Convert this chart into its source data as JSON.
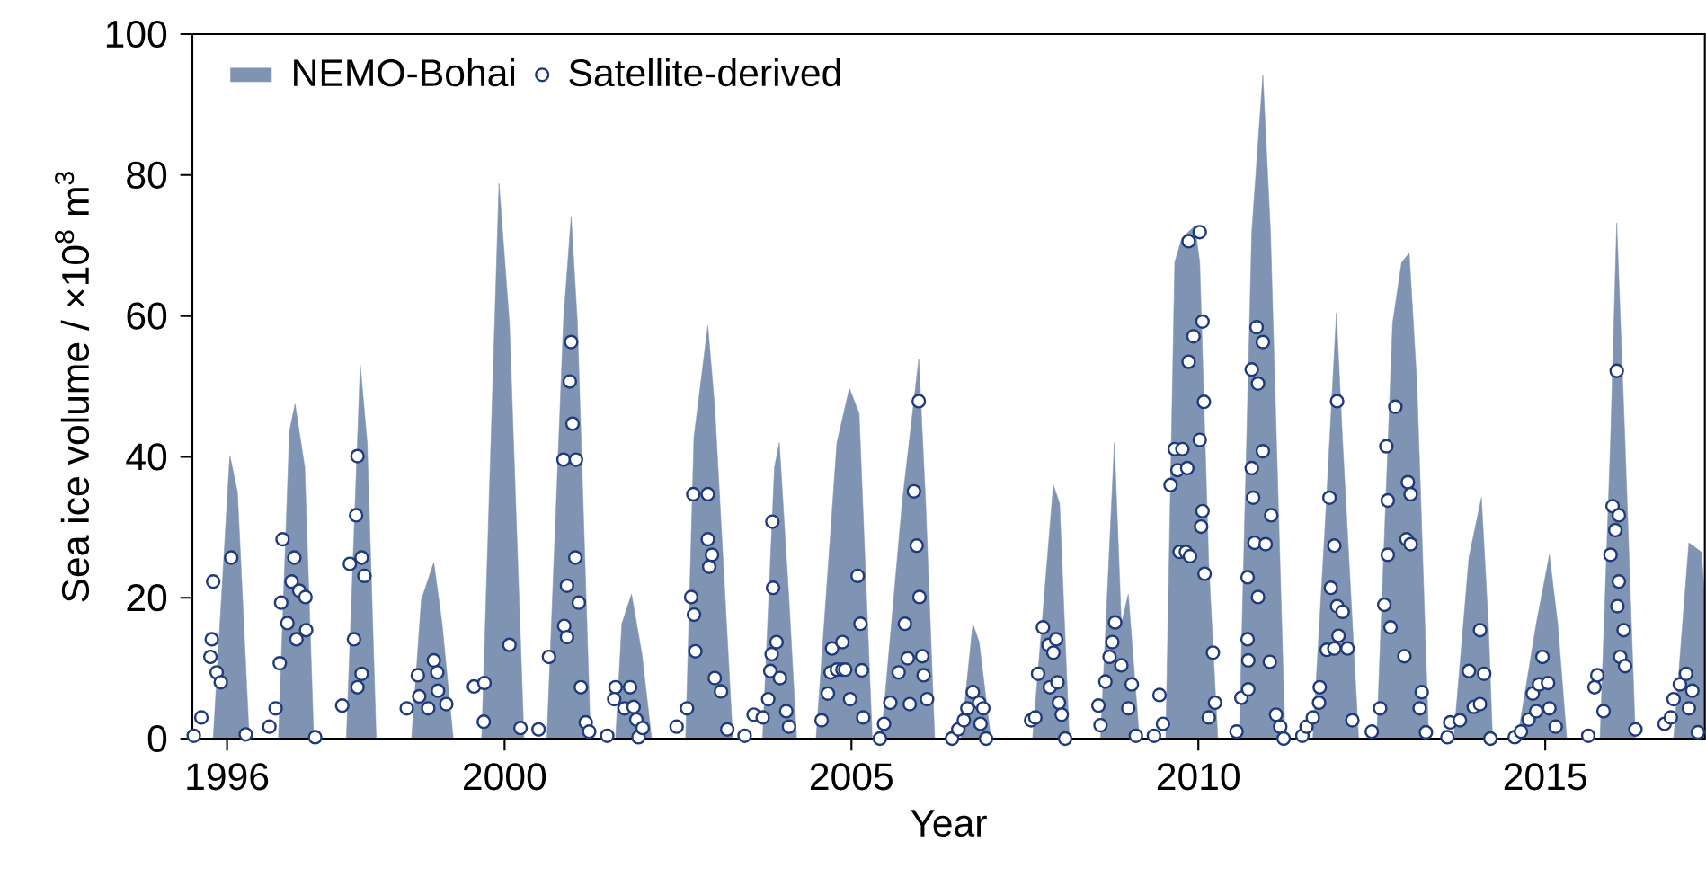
{
  "chart_data": {
    "type": "area",
    "xlabel": "Year",
    "ylabel": "Sea ice volume / ×10$^{8}$ m$^{3}$",
    "xlim": [
      1995.5,
      2017.3
    ],
    "ylim": [
      0,
      100
    ],
    "xticks": [
      1996,
      2000,
      2005,
      2010,
      2015
    ],
    "yticks": [
      0,
      20,
      40,
      60,
      80,
      100
    ],
    "grid": false,
    "legend": "top left",
    "series": [
      {
        "name": "NEMO-Bohai",
        "color": "#7f93b2",
        "x": [
          1995.8,
          1996.04,
          1996.15,
          1996.32,
          1996.74,
          1996.9,
          1996.98,
          1997.12,
          1997.25,
          1997.72,
          1997.92,
          1998.02,
          1998.15,
          1998.66,
          1998.8,
          1998.98,
          1999.1,
          1999.26,
          1999.67,
          1999.92,
          2000.07,
          2000.28,
          2000.61,
          2000.85,
          2000.96,
          2001.05,
          2001.24,
          2001.6,
          2001.69,
          2001.83,
          2001.98,
          2002.12,
          2002.61,
          2002.73,
          2002.93,
          2003.03,
          2003.29,
          2003.72,
          2003.89,
          2003.96,
          2004.1,
          2004.21,
          2004.49,
          2004.79,
          2004.97,
          2005.11,
          2005.3,
          2005.43,
          2005.73,
          2005.97,
          2006.07,
          2006.2,
          2006.58,
          2006.75,
          2006.84,
          2007.01,
          2007.61,
          2007.91,
          2008.0,
          2008.14,
          2008.59,
          2008.72,
          2008.79,
          2008.89,
          2008.99,
          2009.15,
          2009.53,
          2009.66,
          2009.76,
          2009.95,
          2010.02,
          2010.15,
          2010.28,
          2010.59,
          2010.77,
          2010.93,
          2011.04,
          2011.25,
          2011.65,
          2011.82,
          2011.99,
          2012.08,
          2012.31,
          2012.57,
          2012.8,
          2012.93,
          2013.04,
          2013.15,
          2013.32,
          2013.68,
          2013.9,
          2014.08,
          2014.18,
          2014.24,
          2014.6,
          2014.87,
          2015.06,
          2015.18,
          2015.31,
          2015.79,
          2015.94,
          2016.03,
          2016.15,
          2016.3,
          2016.85,
          2017.07,
          2017.25,
          2017.3
        ],
        "values": [
          0,
          40.2,
          35,
          0,
          0,
          43.7,
          47.5,
          38.5,
          0,
          0,
          53.1,
          42,
          0,
          0,
          19.7,
          25,
          16.3,
          0,
          0,
          78.8,
          59,
          0,
          0,
          59.5,
          74.1,
          59,
          0,
          0,
          16.3,
          20.5,
          12,
          0,
          0,
          42.8,
          58.6,
          47,
          0,
          0,
          38.5,
          42,
          19.7,
          0,
          0,
          42,
          49.7,
          46.2,
          0,
          0,
          33.4,
          53.9,
          33.4,
          0,
          0,
          16.3,
          13.7,
          0,
          0,
          36,
          33.4,
          0,
          0,
          27.4,
          42,
          16.3,
          20.5,
          0,
          0,
          67.6,
          71,
          72.8,
          67.6,
          24.8,
          0,
          0,
          71.9,
          94.2,
          71.9,
          0,
          0,
          29,
          60.4,
          42,
          0,
          0,
          59,
          67.6,
          68.9,
          50.5,
          0,
          0,
          25.7,
          34.2,
          16.3,
          0,
          0,
          16.3,
          26.1,
          16.3,
          0,
          0,
          42,
          73.2,
          42,
          0,
          0,
          27.8,
          26.5,
          20
        ]
      },
      {
        "type": "scatter",
        "name": "Satellite-derived",
        "color": "#1f3a7a",
        "x": [
          1995.52,
          1995.63,
          1995.8,
          1995.78,
          1995.76,
          1995.85,
          1995.91,
          1996.06,
          1996.27,
          1996.61,
          1996.7,
          1996.76,
          1996.78,
          1996.8,
          1996.87,
          1996.93,
          1996.97,
          1997.0,
          1997.04,
          1997.13,
          1997.14,
          1997.27,
          1997.66,
          1997.77,
          1997.83,
          1997.86,
          1997.88,
          1997.88,
          1997.94,
          1997.94,
          1997.98,
          1998.59,
          1998.75,
          1998.77,
          1998.9,
          1998.98,
          1999.03,
          1999.04,
          1999.16,
          1999.56,
          1999.71,
          1999.7,
          2000.07,
          2000.23,
          2000.49,
          2000.64,
          2000.85,
          2000.96,
          2000.94,
          2000.98,
          2001.03,
          2001.02,
          2000.9,
          2000.86,
          2000.9,
          2001.07,
          2001.1,
          2001.17,
          2001.22,
          2001.48,
          2001.6,
          2001.58,
          2001.73,
          2001.81,
          2001.86,
          2001.9,
          2001.93,
          2001.99,
          2002.48,
          2002.63,
          2002.69,
          2002.73,
          2002.75,
          2002.72,
          2002.93,
          2002.95,
          2002.99,
          2002.93,
          2003.03,
          2003.12,
          2003.21,
          2003.46,
          2003.59,
          2003.72,
          2003.8,
          2003.83,
          2003.85,
          2003.87,
          2003.86,
          2003.92,
          2003.97,
          2004.06,
          2004.1,
          2004.57,
          2004.66,
          2004.7,
          2004.72,
          2004.79,
          2004.87,
          2004.87,
          2004.91,
          2004.98,
          2005.09,
          2005.13,
          2005.15,
          2005.17,
          2005.41,
          2005.47,
          2005.56,
          2005.68,
          2005.77,
          2005.81,
          2005.9,
          2005.94,
          2005.97,
          2005.98,
          2006.02,
          2006.04,
          2006.09,
          2005.84,
          2006.45,
          2006.54,
          2006.62,
          2006.67,
          2006.75,
          2006.84,
          2006.9,
          2006.86,
          2006.94,
          2007.59,
          2007.65,
          2007.69,
          2007.76,
          2007.84,
          2007.91,
          2007.95,
          2007.86,
          2007.97,
          2007.99,
          2008.03,
          2008.08,
          2008.56,
          2008.59,
          2008.66,
          2008.72,
          2008.76,
          2008.8,
          2008.89,
          2008.99,
          2009.04,
          2009.1,
          2009.36,
          2009.44,
          2009.49,
          2009.6,
          2009.66,
          2009.7,
          2009.73,
          2009.86,
          2010.02,
          2010.06,
          2009.93,
          2009.86,
          2010.08,
          2010.02,
          2009.77,
          2009.84,
          2010.06,
          2010.04,
          2009.82,
          2009.88,
          2010.09,
          2010.21,
          2010.24,
          2010.15,
          2010.55,
          2010.62,
          2010.72,
          2010.72,
          2010.71,
          2010.71,
          2010.86,
          2010.81,
          2010.97,
          2010.79,
          2010.77,
          2010.93,
          2010.77,
          2010.86,
          2010.84,
          2010.93,
          2011.05,
          2011.03,
          2011.12,
          2011.18,
          2011.23,
          2011.5,
          2011.56,
          2011.65,
          2011.74,
          2011.75,
          2011.85,
          2011.96,
          2011.91,
          2011.89,
          2011.96,
          2012.0,
          2012.0,
          2012.08,
          2012.02,
          2012.15,
          2012.22,
          2012.5,
          2012.62,
          2012.68,
          2012.77,
          2012.73,
          2012.71,
          2012.73,
          2012.84,
          2013.02,
          2013.06,
          2013.0,
          2013.06,
          2012.97,
          2013.22,
          2013.19,
          2013.28,
          2013.59,
          2013.63,
          2013.77,
          2013.9,
          2013.97,
          2014.06,
          2014.12,
          2014.06,
          2014.21,
          2014.56,
          2014.65,
          2014.76,
          2014.82,
          2014.91,
          2014.87,
          2014.96,
          2015.04,
          2015.06,
          2015.15,
          2015.62,
          2015.71,
          2015.75,
          2015.84,
          2015.94,
          2015.97,
          2016.06,
          2016.01,
          2016.06,
          2016.04,
          2016.13,
          2016.08,
          2016.15,
          2016.03,
          2016.3,
          2016.72,
          2016.81,
          2016.85,
          2016.94,
          2017.03,
          2017.12,
          2017.07,
          2017.2
        ],
        "values": [
          0.4,
          3,
          22.3,
          14.1,
          11.6,
          9.4,
          8,
          25.7,
          0.6,
          1.7,
          4.3,
          10.7,
          19.3,
          28.3,
          16.4,
          22.3,
          25.7,
          14.1,
          21,
          20.1,
          15.4,
          0.2,
          4.7,
          24.8,
          14.1,
          31.7,
          40.1,
          7.3,
          9.2,
          25.7,
          23.1,
          4.3,
          9,
          6,
          4.3,
          11.1,
          9.4,
          6.8,
          4.9,
          7.4,
          7.9,
          2.4,
          13.3,
          1.5,
          1.3,
          11.6,
          39.6,
          56.3,
          50.7,
          44.7,
          39.6,
          25.7,
          21.7,
          16,
          14.4,
          19.3,
          7.3,
          2.3,
          1,
          0.4,
          7.3,
          5.6,
          4.3,
          7.3,
          4.5,
          2.7,
          0.2,
          1.5,
          1.7,
          4.3,
          20.1,
          17.6,
          12.4,
          34.7,
          34.7,
          24.4,
          26.1,
          28.3,
          8.6,
          6.7,
          1.3,
          0.4,
          3.4,
          3,
          5.6,
          9.6,
          12,
          21.4,
          30.8,
          13.7,
          8.6,
          3.9,
          1.7,
          2.6,
          6.4,
          9.4,
          12.8,
          9.8,
          9.8,
          13.7,
          9.8,
          5.6,
          23.1,
          16.3,
          9.7,
          3,
          0,
          2.1,
          5.1,
          9.4,
          16.3,
          11.4,
          35.1,
          27.4,
          47.9,
          20.1,
          11.7,
          9,
          5.6,
          4.9,
          0,
          1.3,
          2.6,
          4.3,
          6.6,
          5.1,
          4.3,
          2.1,
          0,
          2.6,
          3,
          9.2,
          15.8,
          13.3,
          12.2,
          14.1,
          7.3,
          8,
          5.1,
          3.4,
          0,
          4.7,
          1.9,
          8.1,
          11.6,
          13.7,
          16.5,
          10.4,
          4.3,
          7.7,
          0.4,
          0.4,
          6.2,
          2.1,
          36,
          41.1,
          38.1,
          26.5,
          70.6,
          71.9,
          59.2,
          57.1,
          53.5,
          47.8,
          42.4,
          41.1,
          38.4,
          32.3,
          30.1,
          26.5,
          25.9,
          23.4,
          12.2,
          5.1,
          3,
          1,
          5.8,
          7,
          11.1,
          14.1,
          22.9,
          20.1,
          27.8,
          27.6,
          34.2,
          38.4,
          40.8,
          52.4,
          50.4,
          58.4,
          56.3,
          31.7,
          10.9,
          3.4,
          1.7,
          0,
          0.4,
          1.7,
          3,
          5.1,
          7.3,
          12.6,
          12.8,
          21.4,
          34.2,
          27.4,
          47.9,
          18.8,
          18,
          14.6,
          12.8,
          2.6,
          1,
          4.3,
          19,
          15.8,
          26.1,
          41.5,
          33.8,
          47.1,
          36.4,
          34.7,
          28.3,
          27.6,
          11.7,
          6.6,
          4.3,
          0.9,
          0.2,
          2.3,
          2.6,
          9.6,
          4.5,
          15.4,
          9.2,
          4.9,
          0,
          0.2,
          1,
          2.7,
          6.4,
          7.7,
          3.9,
          11.6,
          7.9,
          4.3,
          1.7,
          0.4,
          7.3,
          9,
          3.9,
          26.1,
          33,
          31.7,
          29.6,
          22.3,
          18.8,
          15.4,
          11.6,
          10.3,
          52.2,
          1.3,
          2.1,
          3,
          5.6,
          7.7,
          9.2,
          6.8,
          4.3,
          0.9
        ]
      }
    ]
  }
}
